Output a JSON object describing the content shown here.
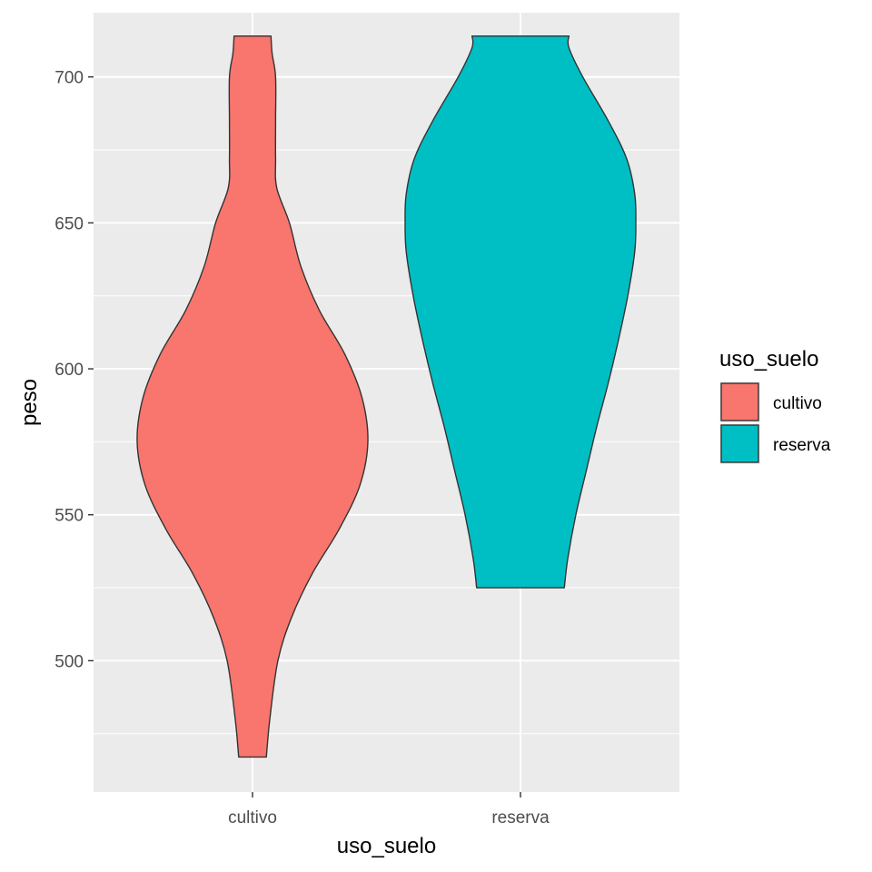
{
  "chart_data": {
    "type": "violin",
    "xlabel": "uso_suelo",
    "ylabel": "peso",
    "categories": [
      "cultivo",
      "reserva"
    ],
    "ylim": [
      455,
      722
    ],
    "yticks": [
      500,
      550,
      600,
      650,
      700
    ],
    "grid": true,
    "legend": {
      "title": "uso_suelo",
      "position": "right",
      "entries": [
        {
          "label": "cultivo",
          "color": "#F8766D"
        },
        {
          "label": "reserva",
          "color": "#00BFC4"
        }
      ]
    },
    "series": [
      {
        "name": "cultivo",
        "color": "#F8766D",
        "min": 467,
        "max": 714,
        "density_profile": [
          [
            467,
            0.12
          ],
          [
            480,
            0.15
          ],
          [
            500,
            0.22
          ],
          [
            515,
            0.34
          ],
          [
            530,
            0.52
          ],
          [
            545,
            0.75
          ],
          [
            560,
            0.93
          ],
          [
            575,
            1.0
          ],
          [
            590,
            0.95
          ],
          [
            605,
            0.8
          ],
          [
            620,
            0.58
          ],
          [
            635,
            0.42
          ],
          [
            650,
            0.32
          ],
          [
            662,
            0.21
          ],
          [
            672,
            0.2
          ],
          [
            685,
            0.2
          ],
          [
            700,
            0.2
          ],
          [
            708,
            0.17
          ],
          [
            714,
            0.16
          ]
        ]
      },
      {
        "name": "reserva",
        "color": "#00BFC4",
        "min": 525,
        "max": 714,
        "density_profile": [
          [
            525,
            0.38
          ],
          [
            535,
            0.41
          ],
          [
            550,
            0.48
          ],
          [
            565,
            0.57
          ],
          [
            580,
            0.66
          ],
          [
            595,
            0.76
          ],
          [
            610,
            0.85
          ],
          [
            625,
            0.93
          ],
          [
            640,
            0.99
          ],
          [
            650,
            1.0
          ],
          [
            660,
            0.99
          ],
          [
            672,
            0.92
          ],
          [
            685,
            0.76
          ],
          [
            700,
            0.54
          ],
          [
            710,
            0.42
          ],
          [
            714,
            0.42
          ]
        ]
      }
    ]
  }
}
